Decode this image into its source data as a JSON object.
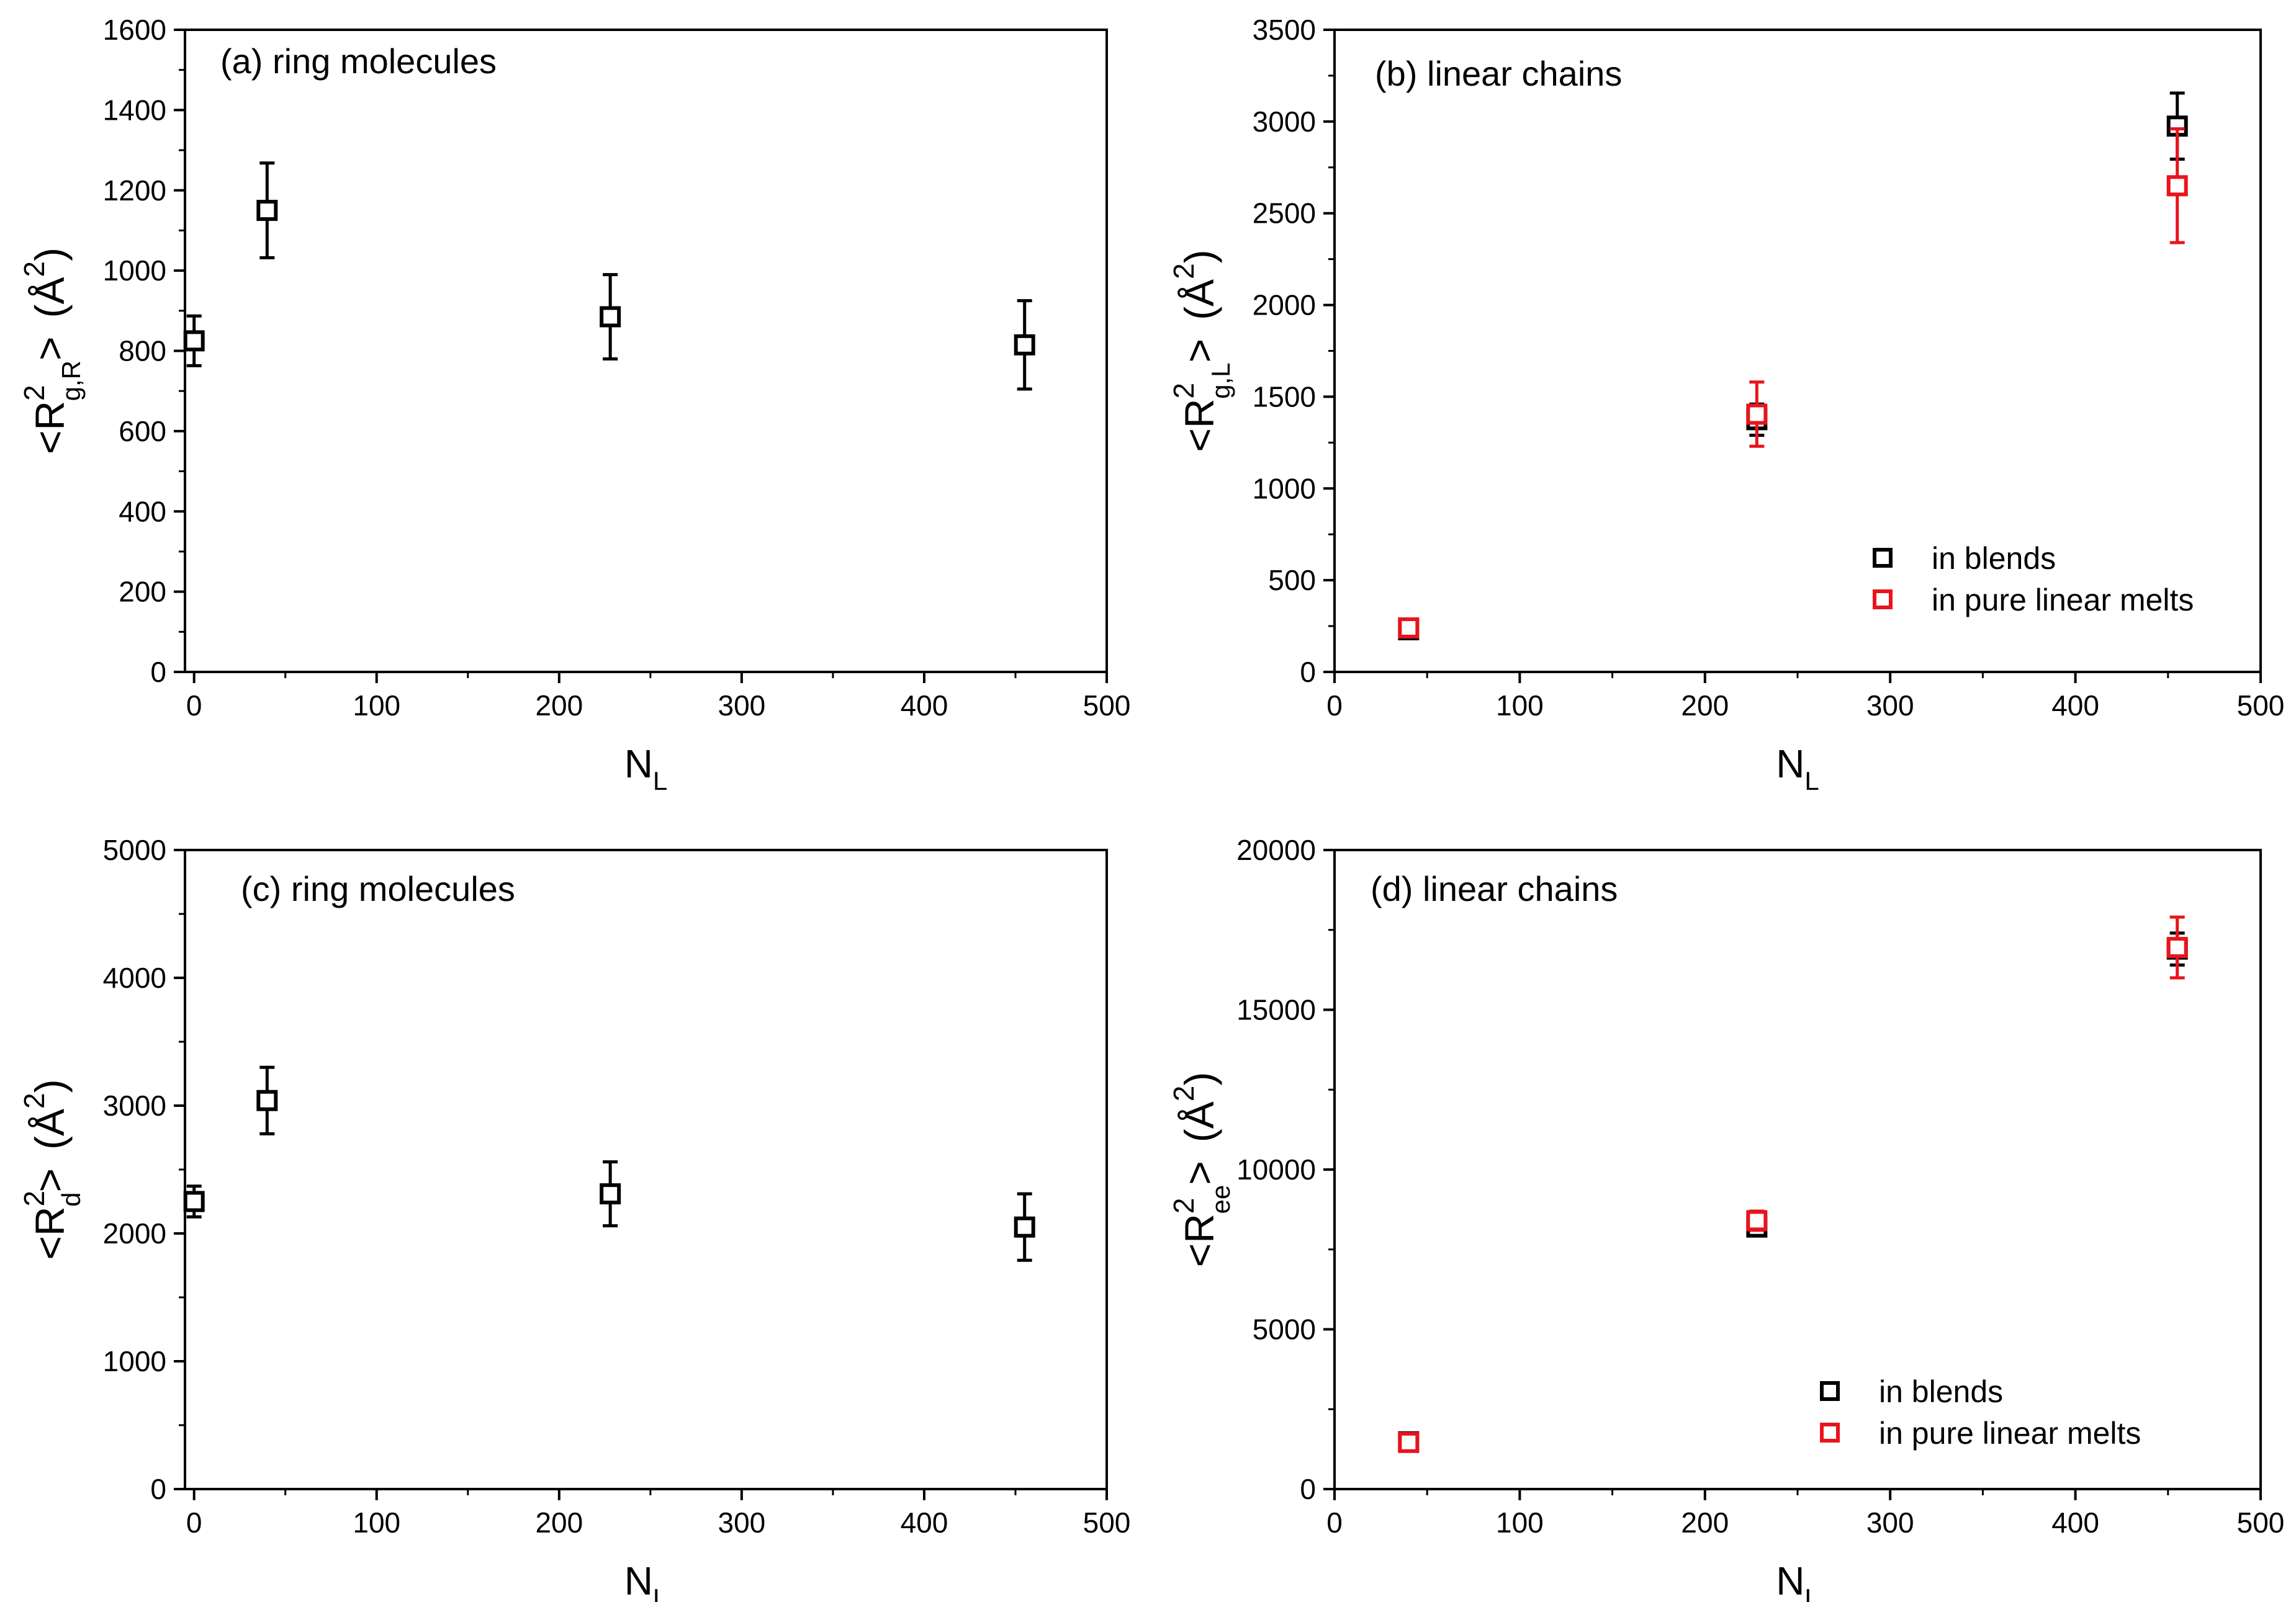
{
  "chart_data": [
    {
      "id": "a",
      "type": "scatter",
      "panel_label": "(a) ring molecules",
      "x_label": "N",
      "x_label_sub": "L",
      "y_label": "<R",
      "y_label_sup": "2",
      "y_label_sub": "g,R",
      "y_label_end": ">",
      "y_unit": "(Å",
      "y_unit_sup": "2",
      "y_unit_end": ")",
      "xlim": [
        -5,
        500
      ],
      "ylim": [
        0,
        1600
      ],
      "x_ticks": [
        0,
        100,
        200,
        300,
        400,
        500
      ],
      "y_ticks": [
        0,
        200,
        400,
        600,
        800,
        1000,
        1200,
        1400,
        1600
      ],
      "legend": [],
      "series": [
        {
          "name": "ring molecules",
          "color": "#000000",
          "points": [
            {
              "x": 0,
              "y": 825,
              "err": 62
            },
            {
              "x": 40,
              "y": 1150,
              "err": 118
            },
            {
              "x": 228,
              "y": 885,
              "err": 105
            },
            {
              "x": 455,
              "y": 815,
              "err": 110
            }
          ]
        }
      ]
    },
    {
      "id": "b",
      "type": "scatter",
      "panel_label": "(b) linear chains",
      "x_label": "N",
      "x_label_sub": "L",
      "y_label": "<R",
      "y_label_sup": "2",
      "y_label_sub": "g,L",
      "y_label_end": ">",
      "y_unit": "(Å",
      "y_unit_sup": "2",
      "y_unit_end": ")",
      "xlim": [
        0,
        500
      ],
      "ylim": [
        0,
        3500
      ],
      "x_ticks": [
        0,
        100,
        200,
        300,
        400,
        500
      ],
      "y_ticks": [
        0,
        500,
        1000,
        1500,
        2000,
        2500,
        3000,
        3500
      ],
      "legend": [
        "in blends",
        "in pure linear melts"
      ],
      "series": [
        {
          "name": "in blends",
          "color": "#000000",
          "points": [
            {
              "x": 40,
              "y": 230,
              "err": 25
            },
            {
              "x": 228,
              "y": 1375,
              "err": 85
            },
            {
              "x": 455,
              "y": 2975,
              "err": 180
            }
          ]
        },
        {
          "name": "in pure linear melts",
          "color": "#e8141c",
          "points": [
            {
              "x": 40,
              "y": 240,
              "err": 30
            },
            {
              "x": 228,
              "y": 1405,
              "err": 175
            },
            {
              "x": 455,
              "y": 2650,
              "err": 310
            }
          ]
        }
      ]
    },
    {
      "id": "c",
      "type": "scatter",
      "panel_label": "(c) ring molecules",
      "x_label": "N",
      "x_label_sub": "L",
      "y_label": "<R",
      "y_label_sup": "2",
      "y_label_sub": "d",
      "y_label_end": ">",
      "y_unit": "(Å",
      "y_unit_sup": "2",
      "y_unit_end": ")",
      "xlim": [
        -5,
        500
      ],
      "ylim": [
        0,
        5000
      ],
      "x_ticks": [
        0,
        100,
        200,
        300,
        400,
        500
      ],
      "y_ticks": [
        0,
        1000,
        2000,
        3000,
        4000,
        5000
      ],
      "legend": [],
      "series": [
        {
          "name": "ring molecules",
          "color": "#000000",
          "points": [
            {
              "x": 0,
              "y": 2250,
              "err": 120
            },
            {
              "x": 40,
              "y": 3040,
              "err": 260
            },
            {
              "x": 228,
              "y": 2310,
              "err": 250
            },
            {
              "x": 455,
              "y": 2050,
              "err": 260
            }
          ]
        }
      ]
    },
    {
      "id": "d",
      "type": "scatter",
      "panel_label": "(d) linear chains",
      "x_label": "N",
      "x_label_sub": "L",
      "y_label": "<R",
      "y_label_sup": "2",
      "y_label_sub": "ee",
      "y_label_end": ">",
      "y_unit": "(Å",
      "y_unit_sup": "2",
      "y_unit_end": ")",
      "xlim": [
        0,
        500
      ],
      "ylim": [
        0,
        20000
      ],
      "x_ticks": [
        0,
        100,
        200,
        300,
        400,
        500
      ],
      "y_ticks": [
        0,
        5000,
        10000,
        15000,
        20000
      ],
      "legend": [
        "in blends",
        "in pure linear melts"
      ],
      "series": [
        {
          "name": "in blends",
          "color": "#000000",
          "points": [
            {
              "x": 40,
              "y": 1480,
              "err": 120
            },
            {
              "x": 228,
              "y": 8200,
              "err": 200
            },
            {
              "x": 455,
              "y": 16900,
              "err": 500
            }
          ]
        },
        {
          "name": "in pure linear melts",
          "color": "#e8141c",
          "points": [
            {
              "x": 40,
              "y": 1460,
              "err": 150
            },
            {
              "x": 228,
              "y": 8400,
              "err": 300
            },
            {
              "x": 455,
              "y": 16950,
              "err": 950
            }
          ]
        }
      ]
    }
  ]
}
